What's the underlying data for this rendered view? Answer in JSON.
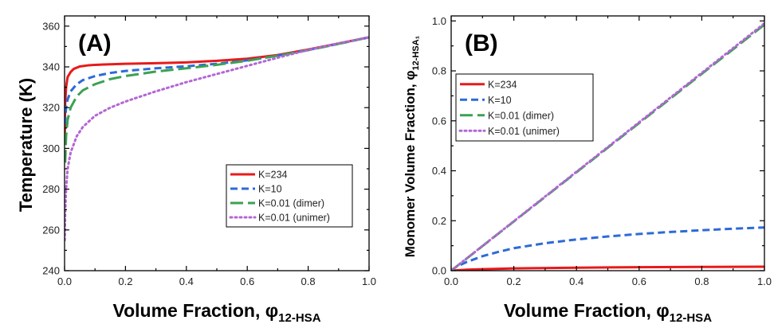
{
  "chart_data": [
    {
      "type": "line",
      "panel_label": "(A)",
      "xlabel_main": "Volume Fraction, φ",
      "xlabel_sub": "12-HSA",
      "ylabel": "Temperature (K)",
      "xlim": [
        0,
        1.0
      ],
      "ylim": [
        240,
        365
      ],
      "xticks": [
        0.0,
        0.2,
        0.4,
        0.6,
        0.8,
        1.0
      ],
      "xtick_labels": [
        "0.0",
        "0.2",
        "0.4",
        "0.6",
        "0.8",
        "1.0"
      ],
      "yticks": [
        240,
        260,
        280,
        300,
        320,
        340,
        360
      ],
      "ytick_labels": [
        "240",
        "260",
        "280",
        "300",
        "320",
        "340",
        "360"
      ],
      "legend_position": "lower-right",
      "series": [
        {
          "name": "K=234",
          "color": "#e8191b",
          "dash": "solid",
          "x": [
            0.0005,
            0.002,
            0.005,
            0.01,
            0.02,
            0.03,
            0.05,
            0.08,
            0.1,
            0.2,
            0.3,
            0.4,
            0.5,
            0.6,
            0.7,
            0.8,
            0.9,
            1.0
          ],
          "y": [
            305,
            322,
            330,
            335,
            337.5,
            339,
            340.2,
            340.8,
            341,
            341.5,
            341.8,
            342.2,
            343,
            344,
            345.8,
            348.5,
            351.5,
            354.5
          ]
        },
        {
          "name": "K=10",
          "color": "#2d6bd6",
          "dash": "dashed",
          "x": [
            0.001,
            0.005,
            0.01,
            0.02,
            0.04,
            0.06,
            0.1,
            0.15,
            0.2,
            0.3,
            0.4,
            0.5,
            0.6,
            0.7,
            0.8,
            0.9,
            1.0
          ],
          "y": [
            312,
            320,
            324,
            328,
            331.5,
            333.5,
            335.5,
            337,
            338,
            339.3,
            340.3,
            341.5,
            343.2,
            345.5,
            348.3,
            351.3,
            354.5
          ]
        },
        {
          "name": "K=0.01 (dimer)",
          "color": "#3ba152",
          "dash": "longdash",
          "x": [
            0.002,
            0.005,
            0.01,
            0.02,
            0.04,
            0.06,
            0.1,
            0.15,
            0.2,
            0.3,
            0.4,
            0.5,
            0.6,
            0.7,
            0.8,
            0.9,
            1.0
          ],
          "y": [
            293,
            306,
            314,
            320,
            325.5,
            328.5,
            331.5,
            334,
            335.5,
            337.7,
            339.3,
            341,
            343,
            345.5,
            348.2,
            351.3,
            354.5
          ]
        },
        {
          "name": "K=0.01 (unimer)",
          "color": "#b366d6",
          "dash": "dotted",
          "x": [
            0.0005,
            0.002,
            0.005,
            0.01,
            0.02,
            0.04,
            0.06,
            0.1,
            0.15,
            0.2,
            0.3,
            0.4,
            0.5,
            0.6,
            0.7,
            0.8,
            0.9,
            1.0
          ],
          "y": [
            255,
            268,
            280,
            290,
            298,
            306,
            310.5,
            316,
            320,
            323,
            328,
            332.5,
            336.5,
            340.5,
            344.5,
            348.3,
            351.5,
            354.5
          ]
        }
      ]
    },
    {
      "type": "line",
      "panel_label": "(B)",
      "xlabel_main": "Volume Fraction, φ",
      "xlabel_sub": "12-HSA",
      "ylabel_main": "Monomer Volume Fraction, φ",
      "ylabel_sub": "12-HSA₁",
      "xlim": [
        0,
        1.0
      ],
      "ylim": [
        0,
        1.02
      ],
      "xticks": [
        0.0,
        0.2,
        0.4,
        0.6,
        0.8,
        1.0
      ],
      "xtick_labels": [
        "0.0",
        "0.2",
        "0.4",
        "0.6",
        "0.8",
        "1.0"
      ],
      "yticks": [
        0.0,
        0.2,
        0.4,
        0.6,
        0.8,
        1.0
      ],
      "ytick_labels": [
        "0.0",
        "0.2",
        "0.4",
        "0.6",
        "0.8",
        "1.0"
      ],
      "legend_position": "upper-left",
      "series": [
        {
          "name": "K=234",
          "color": "#e8191b",
          "dash": "solid",
          "x": [
            0.0,
            0.05,
            0.1,
            0.2,
            0.4,
            0.6,
            0.8,
            1.0
          ],
          "y": [
            0.0,
            0.004,
            0.006,
            0.009,
            0.012,
            0.014,
            0.015,
            0.016
          ]
        },
        {
          "name": "K=10",
          "color": "#2d6bd6",
          "dash": "dashed",
          "x": [
            0.0,
            0.01,
            0.02,
            0.05,
            0.1,
            0.15,
            0.2,
            0.3,
            0.4,
            0.5,
            0.6,
            0.7,
            0.8,
            0.9,
            1.0
          ],
          "y": [
            0.0,
            0.01,
            0.018,
            0.035,
            0.058,
            0.075,
            0.09,
            0.11,
            0.125,
            0.137,
            0.147,
            0.155,
            0.162,
            0.168,
            0.173
          ]
        },
        {
          "name": "K=0.01 (dimer)",
          "color": "#3ba152",
          "dash": "longdash",
          "x": [
            0.0,
            1.0
          ],
          "y": [
            0.0,
            0.985
          ]
        },
        {
          "name": "K=0.01 (unimer)",
          "color": "#b366d6",
          "dash": "dotted",
          "x": [
            0.0,
            1.0
          ],
          "y": [
            0.0,
            0.99
          ]
        }
      ]
    }
  ]
}
